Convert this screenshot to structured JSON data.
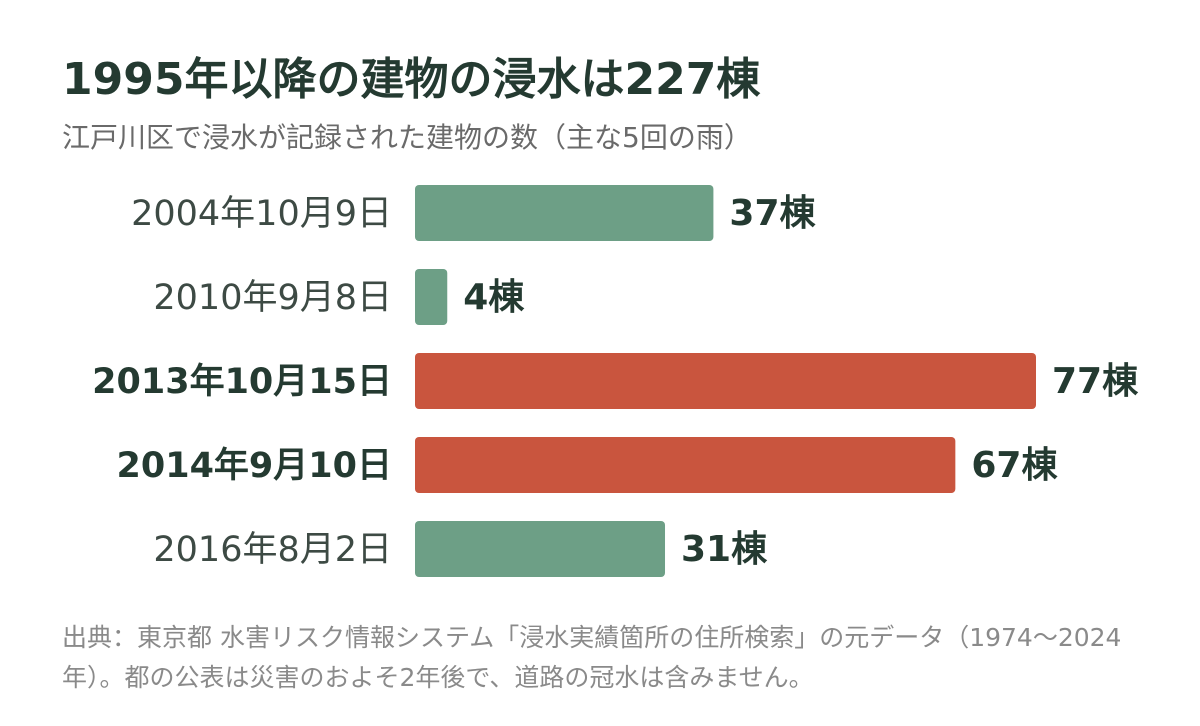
{
  "chart_data": {
    "type": "barh",
    "title": "1995年以降の建物の浸水は227棟",
    "subtitle": "江戸川区で浸水が記録された建物の数（主な5回の雨）",
    "categories": [
      "2004年10月9日",
      "2010年9月8日",
      "2013年10月15日",
      "2014年9月10日",
      "2016年8月2日"
    ],
    "values": [
      37,
      4,
      77,
      67,
      31
    ],
    "value_labels": [
      "37棟",
      "4棟",
      "77棟",
      "67棟",
      "31棟"
    ],
    "colors": [
      "#6d9f86",
      "#6d9f86",
      "#c9553e",
      "#c9553e",
      "#6d9f86"
    ],
    "bold_categories": [
      false,
      false,
      true,
      true,
      false
    ],
    "source": "出典：東京都 水害リスク情報システム「浸水実績箇所の住所検索」の元データ（1974〜2024年）。都の公表は災害のおよそ2年後で、道路の冠水は含みません。"
  }
}
